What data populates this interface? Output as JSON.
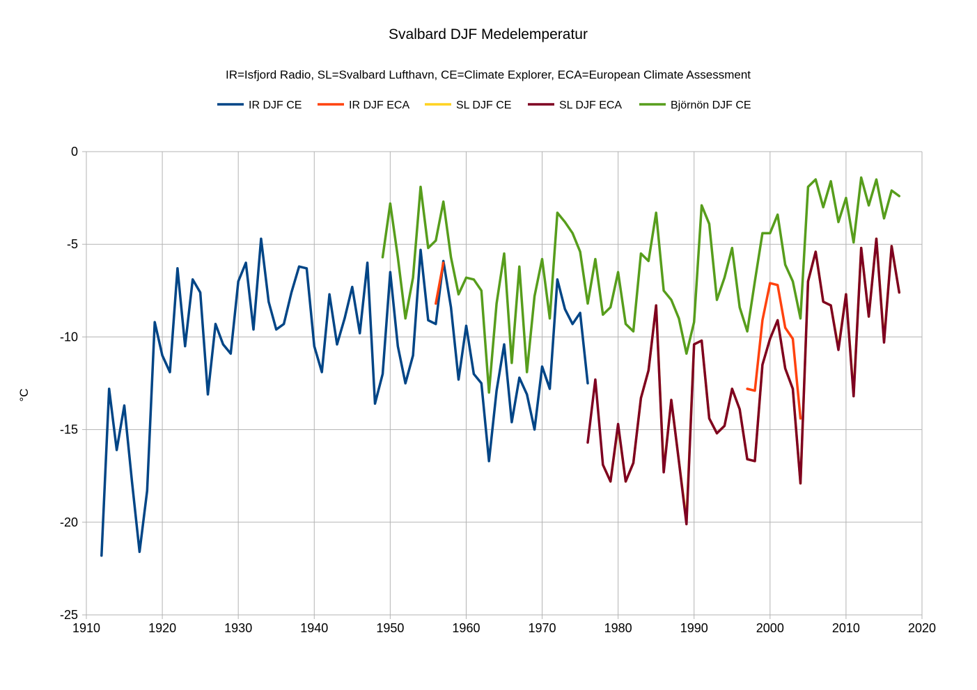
{
  "chart_data": {
    "type": "line",
    "title": "Svalbard DJF Medelemperatur",
    "subtitle": "IR=Isfjord Radio, SL=Svalbard Lufthavn, CE=Climate Explorer, ECA=European Climate Assessment",
    "xlabel": "",
    "ylabel": "°C",
    "xlim": [
      1910,
      2020
    ],
    "ylim": [
      -25,
      0
    ],
    "x_ticks": [
      "1910",
      "1920",
      "1930",
      "1940",
      "1950",
      "1960",
      "1970",
      "1980",
      "1990",
      "2000",
      "2010",
      "2020"
    ],
    "y_ticks": [
      "0",
      "-5",
      "-10",
      "-15",
      "-20",
      "-25"
    ],
    "grid": true,
    "legend_position": "top",
    "series": [
      {
        "name": "IR DJF CE",
        "color": "#004586",
        "x": [
          1912,
          1913,
          1914,
          1915,
          1916,
          1917,
          1918,
          1919,
          1920,
          1921,
          1922,
          1923,
          1924,
          1925,
          1926,
          1927,
          1928,
          1929,
          1930,
          1931,
          1932,
          1933,
          1934,
          1935,
          1936,
          1937,
          1938,
          1939,
          1940,
          1941,
          1942,
          1943,
          1944,
          1945,
          1946,
          1947,
          1948,
          1949,
          1950,
          1951,
          1952,
          1953,
          1954,
          1955,
          1956,
          1957,
          1958,
          1959,
          1960,
          1961,
          1962,
          1963,
          1964,
          1965,
          1966,
          1967,
          1968,
          1969,
          1970,
          1971,
          1972,
          1973,
          1974,
          1975,
          1976
        ],
        "values": [
          -21.8,
          -12.8,
          -16.1,
          -13.7,
          -17.8,
          -21.6,
          -18.3,
          -9.2,
          -11.0,
          -11.9,
          -6.3,
          -10.5,
          -6.9,
          -7.6,
          -13.1,
          -9.3,
          -10.4,
          -10.9,
          -7.0,
          -6.0,
          -9.6,
          -4.7,
          -8.1,
          -9.6,
          -9.3,
          -7.6,
          -6.2,
          -6.3,
          -10.5,
          -11.9,
          -7.7,
          -10.4,
          -9.0,
          -7.3,
          -9.8,
          -6.0,
          -13.6,
          -12.0,
          -6.5,
          -10.5,
          -12.5,
          -11.0,
          -5.3,
          -9.1,
          -9.3,
          -5.9,
          -8.4,
          -12.3,
          -9.4,
          -12.0,
          -12.5,
          -16.7,
          -12.9,
          -10.4,
          -14.6,
          -12.2,
          -13.1,
          -15.0,
          -11.6,
          -12.8,
          -6.9,
          -8.5,
          -9.3,
          -8.7,
          -12.5
        ]
      },
      {
        "name": "IR DJF ECA",
        "color": "#ff420e",
        "segments": [
          {
            "x": [
              1956,
              1957
            ],
            "values": [
              -8.2,
              -6.0
            ]
          },
          {
            "x": [
              1997,
              1998,
              1999,
              2000,
              2001,
              2002,
              2003,
              2004
            ],
            "values": [
              -12.8,
              -12.9,
              -9.1,
              -7.1,
              -7.2,
              -9.5,
              -10.1,
              -14.4
            ]
          }
        ]
      },
      {
        "name": "SL DJF CE",
        "color": "#ffd320",
        "x": [
          1978,
          1979,
          1980,
          1981,
          1982,
          1983,
          1984,
          1985,
          1986,
          1987,
          1988,
          1989,
          1990,
          1991,
          1992,
          1993,
          1994,
          1995,
          1996,
          1997,
          1998,
          1999,
          2000,
          2001,
          2002,
          2003,
          2004,
          2005,
          2006,
          2007,
          2008,
          2009,
          2010,
          2011,
          2012,
          2013,
          2014,
          2015,
          2016,
          2017
        ],
        "values": [
          -16.9,
          -17.8,
          -14.8,
          -17.8,
          -16.8,
          -13.3,
          -11.8,
          -8.3,
          -17.2,
          -13.4,
          -16.7,
          -19.9,
          -10.4,
          -10.2,
          -14.4,
          -15.2,
          -14.8,
          -12.8,
          -13.9,
          -16.6,
          -16.7,
          -11.5,
          -10.1,
          -9.1,
          -11.7,
          -12.8,
          -17.9,
          -7.0,
          -5.4,
          -8.1,
          -8.3,
          -10.6,
          -7.7,
          -13.1,
          -5.2,
          -8.9,
          -4.7,
          -10.2,
          -5.1,
          -7.6
        ]
      },
      {
        "name": "SL DJF ECA",
        "color": "#7e0021",
        "x": [
          1976,
          1977,
          1978,
          1979,
          1980,
          1981,
          1982,
          1983,
          1984,
          1985,
          1986,
          1987,
          1988,
          1989,
          1990,
          1991,
          1992,
          1993,
          1994,
          1995,
          1996,
          1997,
          1998,
          1999,
          2000,
          2001,
          2002,
          2003,
          2004,
          2005,
          2006,
          2007,
          2008,
          2009,
          2010,
          2011,
          2012,
          2013,
          2014,
          2015,
          2016,
          2017
        ],
        "values": [
          -15.7,
          -12.3,
          -16.9,
          -17.8,
          -14.7,
          -17.8,
          -16.8,
          -13.3,
          -11.8,
          -8.3,
          -17.3,
          -13.4,
          -16.7,
          -20.1,
          -10.4,
          -10.2,
          -14.4,
          -15.2,
          -14.8,
          -12.8,
          -13.9,
          -16.6,
          -16.7,
          -11.5,
          -10.1,
          -9.1,
          -11.7,
          -12.8,
          -17.9,
          -7.0,
          -5.4,
          -8.1,
          -8.3,
          -10.7,
          -7.7,
          -13.2,
          -5.2,
          -8.9,
          -4.7,
          -10.3,
          -5.1,
          -7.6
        ]
      },
      {
        "name": "Björnön DJF CE",
        "color": "#579d1c",
        "x": [
          1949,
          1950,
          1951,
          1952,
          1953,
          1954,
          1955,
          1956,
          1957,
          1958,
          1959,
          1960,
          1961,
          1962,
          1963,
          1964,
          1965,
          1966,
          1967,
          1968,
          1969,
          1970,
          1971,
          1972,
          1973,
          1974,
          1975,
          1976,
          1977,
          1978,
          1979,
          1980,
          1981,
          1982,
          1983,
          1984,
          1985,
          1986,
          1987,
          1988,
          1989,
          1990,
          1991,
          1992,
          1993,
          1994,
          1995,
          1996,
          1997,
          1998,
          1999,
          2000,
          2001,
          2002,
          2003,
          2004,
          2005,
          2006,
          2007,
          2008,
          2009,
          2010,
          2011,
          2012,
          2013,
          2014,
          2015,
          2016,
          2017
        ],
        "values": [
          -5.7,
          -2.8,
          -5.7,
          -9.0,
          -6.8,
          -1.9,
          -5.2,
          -4.8,
          -2.7,
          -5.7,
          -7.7,
          -6.8,
          -6.9,
          -7.5,
          -13.0,
          -8.2,
          -5.5,
          -11.4,
          -6.2,
          -11.9,
          -7.8,
          -5.8,
          -9.0,
          -3.3,
          -3.8,
          -4.4,
          -5.4,
          -8.2,
          -5.8,
          -8.8,
          -8.4,
          -6.5,
          -9.3,
          -9.7,
          -5.5,
          -5.9,
          -3.3,
          -7.5,
          -8.0,
          -9.0,
          -10.9,
          -9.2,
          -2.9,
          -3.9,
          -8.0,
          -6.8,
          -5.2,
          -8.4,
          -9.7,
          -7.0,
          -4.4,
          -4.4,
          -3.4,
          -6.1,
          -7.0,
          -9.0,
          -1.9,
          -1.5,
          -3.0,
          -1.6,
          -3.8,
          -2.5,
          -4.9,
          -1.4,
          -2.9,
          -1.5,
          -3.6,
          -2.1,
          -2.4
        ]
      }
    ]
  }
}
